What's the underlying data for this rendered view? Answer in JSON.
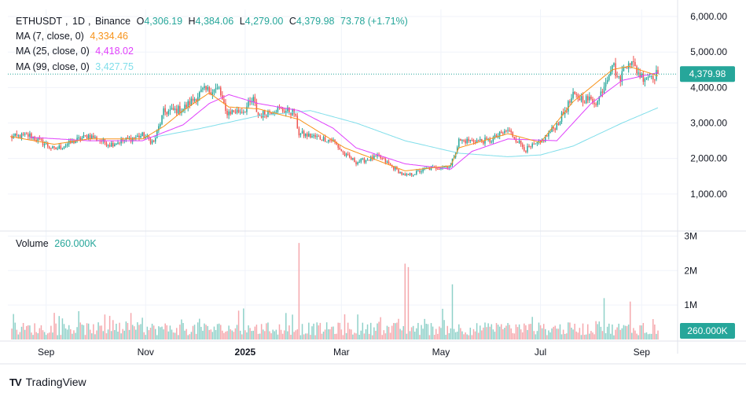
{
  "header": {
    "symbol": "ETHUSDT",
    "interval": "1D",
    "exchange": "Binance",
    "ohlc": {
      "o_label": "O",
      "o": "4,306.19",
      "h_label": "H",
      "h": "4,384.06",
      "l_label": "L",
      "l": "4,279.00",
      "c_label": "C",
      "c": "4,379.98",
      "change": "73.78 (+1.71%)"
    },
    "ma7": {
      "label": "MA (7, close, 0)",
      "value": "4,334.46",
      "color": "#f7931a"
    },
    "ma25": {
      "label": "MA (25, close, 0)",
      "value": "4,418.02",
      "color": "#e040fb"
    },
    "ma99": {
      "label": "MA (99, close, 0)",
      "value": "3,427.75",
      "color": "#80deea"
    }
  },
  "volume_legend": {
    "label": "Volume",
    "value": "260.000K"
  },
  "price_badge": "4,379.98",
  "volume_badge": "260.000K",
  "branding": {
    "logo_text": "TV",
    "name": "TradingView"
  },
  "colors": {
    "up": "#26a69a",
    "down": "#ef5350",
    "vol_up": "#8fd1c9",
    "vol_down": "#f5a8ad",
    "grid": "#f0f3fa",
    "axis_text": "#131722"
  },
  "chart_data": [
    {
      "type": "candlestick",
      "title": "ETHUSDT, 1D, Binance",
      "yticks": [
        "1,000.00",
        "2,000.00",
        "3,000.00",
        "4,000.00",
        "5,000.00",
        "6,000.00"
      ],
      "ytick_values": [
        1000,
        2000,
        3000,
        4000,
        5000,
        6000
      ],
      "ylim": [
        0,
        6200
      ],
      "xticks": [
        "Sep",
        "Nov",
        "2025",
        "Mar",
        "May",
        "Jul",
        "Sep"
      ],
      "xtick_dates": [
        "2024-09-01",
        "2024-11-01",
        "2025-01-01",
        "2025-03-01",
        "2025-05-01",
        "2025-07-01",
        "2025-09-01"
      ],
      "start_date": "2024-08-10",
      "end_date": "2025-09-11",
      "grid": true,
      "last_close": 4379.98,
      "series_anchors": {
        "close": [
          [
            "2024-08-10",
            2600
          ],
          [
            "2024-08-22",
            2650
          ],
          [
            "2024-09-06",
            2250
          ],
          [
            "2024-09-27",
            2650
          ],
          [
            "2024-10-10",
            2400
          ],
          [
            "2024-10-30",
            2650
          ],
          [
            "2024-11-06",
            2450
          ],
          [
            "2024-11-12",
            3300
          ],
          [
            "2024-11-24",
            3400
          ],
          [
            "2024-12-06",
            3900
          ],
          [
            "2024-12-16",
            3950
          ],
          [
            "2024-12-20",
            3300
          ],
          [
            "2024-12-31",
            3350
          ],
          [
            "2025-01-06",
            3650
          ],
          [
            "2025-01-09",
            3200
          ],
          [
            "2025-01-20",
            3400
          ],
          [
            "2025-01-31",
            3300
          ],
          [
            "2025-02-03",
            2700
          ],
          [
            "2025-02-24",
            2500
          ],
          [
            "2025-03-03",
            2100
          ],
          [
            "2025-03-10",
            1900
          ],
          [
            "2025-03-24",
            2050
          ],
          [
            "2025-04-09",
            1500
          ],
          [
            "2025-04-22",
            1700
          ],
          [
            "2025-05-07",
            1800
          ],
          [
            "2025-05-12",
            2500
          ],
          [
            "2025-05-31",
            2500
          ],
          [
            "2025-06-11",
            2800
          ],
          [
            "2025-06-22",
            2250
          ],
          [
            "2025-07-01",
            2450
          ],
          [
            "2025-07-11",
            2950
          ],
          [
            "2025-07-21",
            3750
          ],
          [
            "2025-08-05",
            3600
          ],
          [
            "2025-08-14",
            4700
          ],
          [
            "2025-08-18",
            4200
          ],
          [
            "2025-08-24",
            4800
          ],
          [
            "2025-09-01",
            4300
          ],
          [
            "2025-09-11",
            4380
          ]
        ],
        "ma7": [
          [
            "2024-08-10",
            2620
          ],
          [
            "2024-09-06",
            2400
          ],
          [
            "2024-09-27",
            2550
          ],
          [
            "2024-10-30",
            2550
          ],
          [
            "2024-11-12",
            2900
          ],
          [
            "2024-11-24",
            3350
          ],
          [
            "2024-12-10",
            3850
          ],
          [
            "2024-12-22",
            3450
          ],
          [
            "2025-01-09",
            3400
          ],
          [
            "2025-02-03",
            3100
          ],
          [
            "2025-03-03",
            2300
          ],
          [
            "2025-04-09",
            1650
          ],
          [
            "2025-05-07",
            1800
          ],
          [
            "2025-05-12",
            2300
          ],
          [
            "2025-06-11",
            2700
          ],
          [
            "2025-07-01",
            2450
          ],
          [
            "2025-07-21",
            3600
          ],
          [
            "2025-08-14",
            4500
          ],
          [
            "2025-08-24",
            4600
          ],
          [
            "2025-09-11",
            4330
          ]
        ],
        "ma25": [
          [
            "2024-08-22",
            2600
          ],
          [
            "2024-09-27",
            2500
          ],
          [
            "2024-10-30",
            2500
          ],
          [
            "2024-11-24",
            2950
          ],
          [
            "2024-12-10",
            3550
          ],
          [
            "2024-12-22",
            3800
          ],
          [
            "2025-01-09",
            3550
          ],
          [
            "2025-02-03",
            3350
          ],
          [
            "2025-02-24",
            2850
          ],
          [
            "2025-03-10",
            2300
          ],
          [
            "2025-04-09",
            1850
          ],
          [
            "2025-05-07",
            1700
          ],
          [
            "2025-05-20",
            2200
          ],
          [
            "2025-06-11",
            2550
          ],
          [
            "2025-07-11",
            2500
          ],
          [
            "2025-08-01",
            3550
          ],
          [
            "2025-08-20",
            4200
          ],
          [
            "2025-09-11",
            4420
          ]
        ],
        "ma99": [
          [
            "2024-11-06",
            2600
          ],
          [
            "2024-12-05",
            2850
          ],
          [
            "2025-01-09",
            3200
          ],
          [
            "2025-02-10",
            3350
          ],
          [
            "2025-03-10",
            3000
          ],
          [
            "2025-04-09",
            2500
          ],
          [
            "2025-05-12",
            2150
          ],
          [
            "2025-06-11",
            2050
          ],
          [
            "2025-07-01",
            2100
          ],
          [
            "2025-07-21",
            2350
          ],
          [
            "2025-08-20",
            3000
          ],
          [
            "2025-09-11",
            3430
          ]
        ]
      },
      "volume_spikes": [
        [
          "2024-08-10",
          0.75
        ],
        [
          "2024-12-31",
          0.9
        ],
        [
          "2025-02-03",
          2.8
        ],
        [
          "2025-04-09",
          2.2
        ],
        [
          "2025-04-11",
          2.1
        ],
        [
          "2025-05-08",
          1.6
        ],
        [
          "2025-08-09",
          1.2
        ],
        [
          "2025-08-25",
          1.1
        ]
      ]
    },
    {
      "type": "bar",
      "title": "Volume",
      "yticks": [
        "1M",
        "2M",
        "3M"
      ],
      "ytick_values": [
        1,
        2,
        3
      ],
      "ylim": [
        0,
        3.1
      ],
      "unit": "M",
      "last_value": 0.26,
      "grid": true
    }
  ]
}
